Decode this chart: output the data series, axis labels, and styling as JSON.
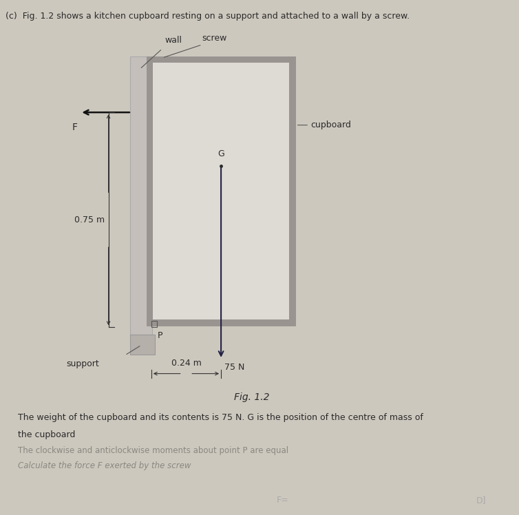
{
  "bg_color": "#cdc8be",
  "title_text": "(c)  Fig. 1.2 shows a kitchen cupboard resting on a support and attached to a wall by a screw.",
  "fig_label": "Fig. 1.2",
  "caption_line1": "The weight of the cupboard and its contents is 75 N. G is the position of the centre of mass of",
  "caption_line2": "the cupboard",
  "caption_line3": "The clockwise and anticlockwise moments about point P are equal",
  "caption_line4": "Calculate the force F exerted by the screw",
  "footer_left": "F=",
  "footer_right": "D]",
  "text_color": "#2a2a2a",
  "label_color": "#555555",
  "arrow_color": "#111111",
  "weight_arrow_color": "#222244",
  "dim_color": "#333333"
}
